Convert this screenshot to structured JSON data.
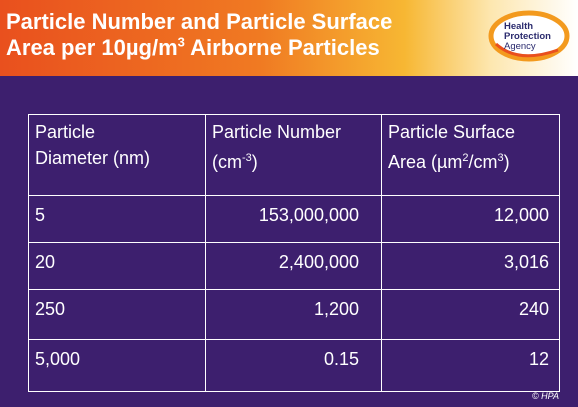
{
  "header": {
    "title_line1": "Particle Number and Particle Surface",
    "title_line2_pre": "Area per 10µg/m",
    "title_line2_sup": "3",
    "title_line2_post": " Airborne Particles"
  },
  "logo": {
    "line1": "Health",
    "line2": "Protection",
    "line3": "Agency"
  },
  "table": {
    "headers": {
      "col1_line1": "Particle",
      "col1_line2": "Diameter (nm)",
      "col2_line1": "Particle Number",
      "col2_line2_pre": "(cm",
      "col2_line2_sup": "-3",
      "col2_line2_post": ")",
      "col3_line1": "Particle Surface",
      "col3_line2_pre": "Area (µm",
      "col3_line2_sup1": "2",
      "col3_line2_mid": "/cm",
      "col3_line2_sup2": "3",
      "col3_line2_post": ")"
    },
    "rows": [
      {
        "diameter": "5",
        "number": "153,000,000",
        "surface": "12,000"
      },
      {
        "diameter": "20",
        "number": "2,400,000",
        "surface": "3,016"
      },
      {
        "diameter": "250",
        "number": "1,200",
        "surface": "240"
      },
      {
        "diameter": "5,000",
        "number": "0.15",
        "surface": "12"
      }
    ]
  },
  "footer": {
    "copyright": "© HPA"
  },
  "colors": {
    "background": "#3d1f6e",
    "header_orange": "#e9501e",
    "logo_ring": "#f39a1e",
    "logo_text": "#2b2b6e"
  }
}
